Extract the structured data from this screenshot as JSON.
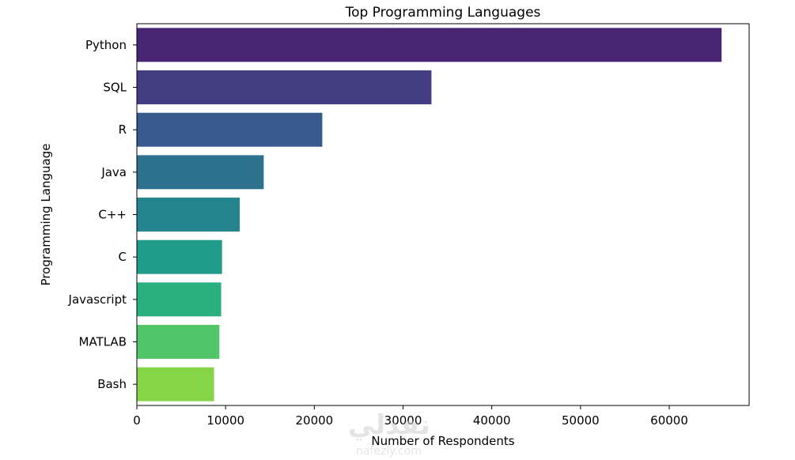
{
  "watermark": {
    "brand": "نفذلي",
    "site": "nafezly.com"
  },
  "chart_data": {
    "type": "bar",
    "orientation": "horizontal",
    "title": "Top Programming Languages",
    "xlabel": "Number of Respondents",
    "ylabel": "Programming Language",
    "categories": [
      "Python",
      "SQL",
      "R",
      "Java",
      "C++",
      "C",
      "Javascript",
      "MATLAB",
      "Bash"
    ],
    "values": [
      65900,
      33200,
      20900,
      14300,
      11600,
      9600,
      9500,
      9300,
      8700
    ],
    "colors": [
      "#482475",
      "#433d84",
      "#38598c",
      "#2d718e",
      "#25858e",
      "#1e9b8a",
      "#2ab07f",
      "#52c569",
      "#86d549"
    ],
    "colormap": "viridis",
    "xlim": [
      0,
      69000
    ],
    "xticks": [
      0,
      10000,
      20000,
      30000,
      40000,
      50000,
      60000
    ],
    "xtick_labels": [
      "0",
      "10000",
      "20000",
      "30000",
      "40000",
      "50000",
      "60000"
    ],
    "grid": false,
    "legend": "none"
  }
}
